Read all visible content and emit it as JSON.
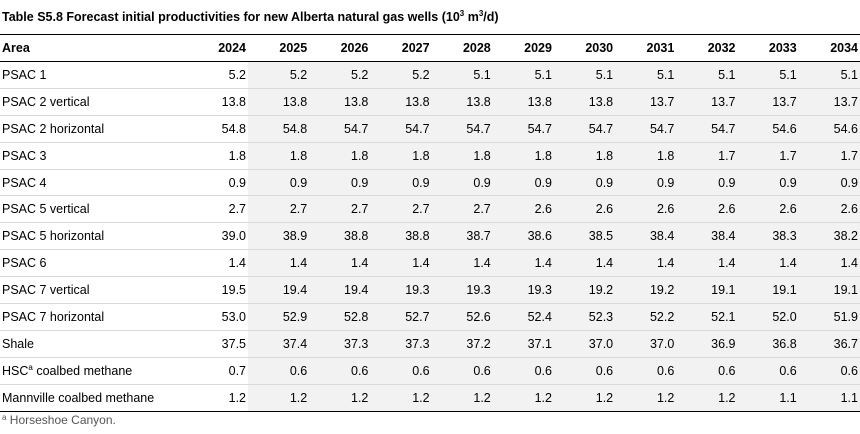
{
  "title": {
    "prefix": "Table S5.8  Forecast initial productivities for new Alberta natural gas wells (10",
    "exponent": "3",
    "units": " m",
    "units_exponent": "3",
    "suffix": "/d)"
  },
  "table": {
    "area_header": "Area",
    "years": [
      "2024",
      "2025",
      "2026",
      "2027",
      "2028",
      "2029",
      "2030",
      "2031",
      "2032",
      "2033",
      "2034"
    ],
    "rows": [
      {
        "area": "PSAC 1",
        "values": [
          "5.2",
          "5.2",
          "5.2",
          "5.2",
          "5.1",
          "5.1",
          "5.1",
          "5.1",
          "5.1",
          "5.1",
          "5.1"
        ]
      },
      {
        "area": "PSAC 2 vertical",
        "values": [
          "13.8",
          "13.8",
          "13.8",
          "13.8",
          "13.8",
          "13.8",
          "13.8",
          "13.7",
          "13.7",
          "13.7",
          "13.7"
        ]
      },
      {
        "area": "PSAC 2 horizontal",
        "values": [
          "54.8",
          "54.8",
          "54.7",
          "54.7",
          "54.7",
          "54.7",
          "54.7",
          "54.7",
          "54.7",
          "54.6",
          "54.6"
        ]
      },
      {
        "area": "PSAC 3",
        "values": [
          "1.8",
          "1.8",
          "1.8",
          "1.8",
          "1.8",
          "1.8",
          "1.8",
          "1.8",
          "1.7",
          "1.7",
          "1.7"
        ]
      },
      {
        "area": "PSAC 4",
        "values": [
          "0.9",
          "0.9",
          "0.9",
          "0.9",
          "0.9",
          "0.9",
          "0.9",
          "0.9",
          "0.9",
          "0.9",
          "0.9"
        ]
      },
      {
        "area": "PSAC 5 vertical",
        "values": [
          "2.7",
          "2.7",
          "2.7",
          "2.7",
          "2.7",
          "2.6",
          "2.6",
          "2.6",
          "2.6",
          "2.6",
          "2.6"
        ]
      },
      {
        "area": "PSAC 5 horizontal",
        "values": [
          "39.0",
          "38.9",
          "38.8",
          "38.8",
          "38.7",
          "38.6",
          "38.5",
          "38.4",
          "38.4",
          "38.3",
          "38.2"
        ]
      },
      {
        "area": "PSAC 6",
        "values": [
          "1.4",
          "1.4",
          "1.4",
          "1.4",
          "1.4",
          "1.4",
          "1.4",
          "1.4",
          "1.4",
          "1.4",
          "1.4"
        ]
      },
      {
        "area": "PSAC 7 vertical",
        "values": [
          "19.5",
          "19.4",
          "19.4",
          "19.3",
          "19.3",
          "19.3",
          "19.2",
          "19.2",
          "19.1",
          "19.1",
          "19.1"
        ]
      },
      {
        "area": "PSAC 7 horizontal",
        "values": [
          "53.0",
          "52.9",
          "52.8",
          "52.7",
          "52.6",
          "52.4",
          "52.3",
          "52.2",
          "52.1",
          "52.0",
          "51.9"
        ]
      },
      {
        "area": "Shale",
        "values": [
          "37.5",
          "37.4",
          "37.3",
          "37.3",
          "37.2",
          "37.1",
          "37.0",
          "37.0",
          "36.9",
          "36.8",
          "36.7"
        ]
      },
      {
        "area": "HSC",
        "area_sup": "a",
        "area_suffix": " coalbed methane",
        "values": [
          "0.7",
          "0.6",
          "0.6",
          "0.6",
          "0.6",
          "0.6",
          "0.6",
          "0.6",
          "0.6",
          "0.6",
          "0.6"
        ]
      },
      {
        "area": "Mannville coalbed methane",
        "values": [
          "1.2",
          "1.2",
          "1.2",
          "1.2",
          "1.2",
          "1.2",
          "1.2",
          "1.2",
          "1.2",
          "1.1",
          "1.1"
        ]
      }
    ]
  },
  "footnote": {
    "marker": "a",
    "text": " Horseshoe Canyon."
  },
  "colors": {
    "shade": "#f2f2f2",
    "rule": "#000000",
    "row_divider": "#d9d9d9",
    "footnote_text": "#555555"
  }
}
